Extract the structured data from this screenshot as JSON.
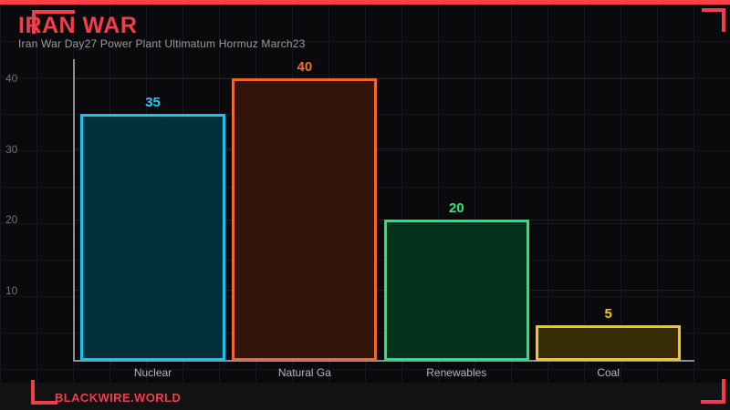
{
  "theme": {
    "accent_red": "#f23d4b",
    "strip_red": "#f9404c",
    "background": "#0a0a0c",
    "axis_color": "#8e8e96",
    "tick_color": "#707076",
    "category_color": "#b6b6bc",
    "subtitle_color": "#9b9ba1"
  },
  "header": {
    "title": "IRAN WAR",
    "subtitle": "Iran War Day27 Power Plant Ultimatum Hormuz March23"
  },
  "footer": {
    "brand": "BLACKWIRE.WORLD"
  },
  "chart_data": {
    "type": "bar",
    "title": "IRAN WAR",
    "subtitle": "Iran War Day27 Power Plant Ultimatum Hormuz March23",
    "categories": [
      "Nuclear",
      "Natural Ga",
      "Renewables",
      "Coal"
    ],
    "values": [
      35,
      40,
      20,
      5
    ],
    "value_labels": [
      "35",
      "40",
      "20",
      "5"
    ],
    "series_colors": [
      {
        "name": "nuclear",
        "border": "#18c4ec",
        "fill": "#04303a",
        "label": "#2bc9f1"
      },
      {
        "name": "natural-ga",
        "border": "#f2662f",
        "fill": "#331509",
        "label": "#f46c2e"
      },
      {
        "name": "renewables",
        "border": "#23e57d",
        "fill": "#03331d",
        "label": "#2ee67e"
      },
      {
        "name": "coal",
        "border": "#f6c70b",
        "fill": "#362b03",
        "label": "#f3c41d"
      }
    ],
    "xlabel": "",
    "ylabel": "",
    "y_ticks": [
      10,
      20,
      30,
      40
    ],
    "ylim": [
      0,
      42
    ],
    "grid": true,
    "legend": false
  }
}
